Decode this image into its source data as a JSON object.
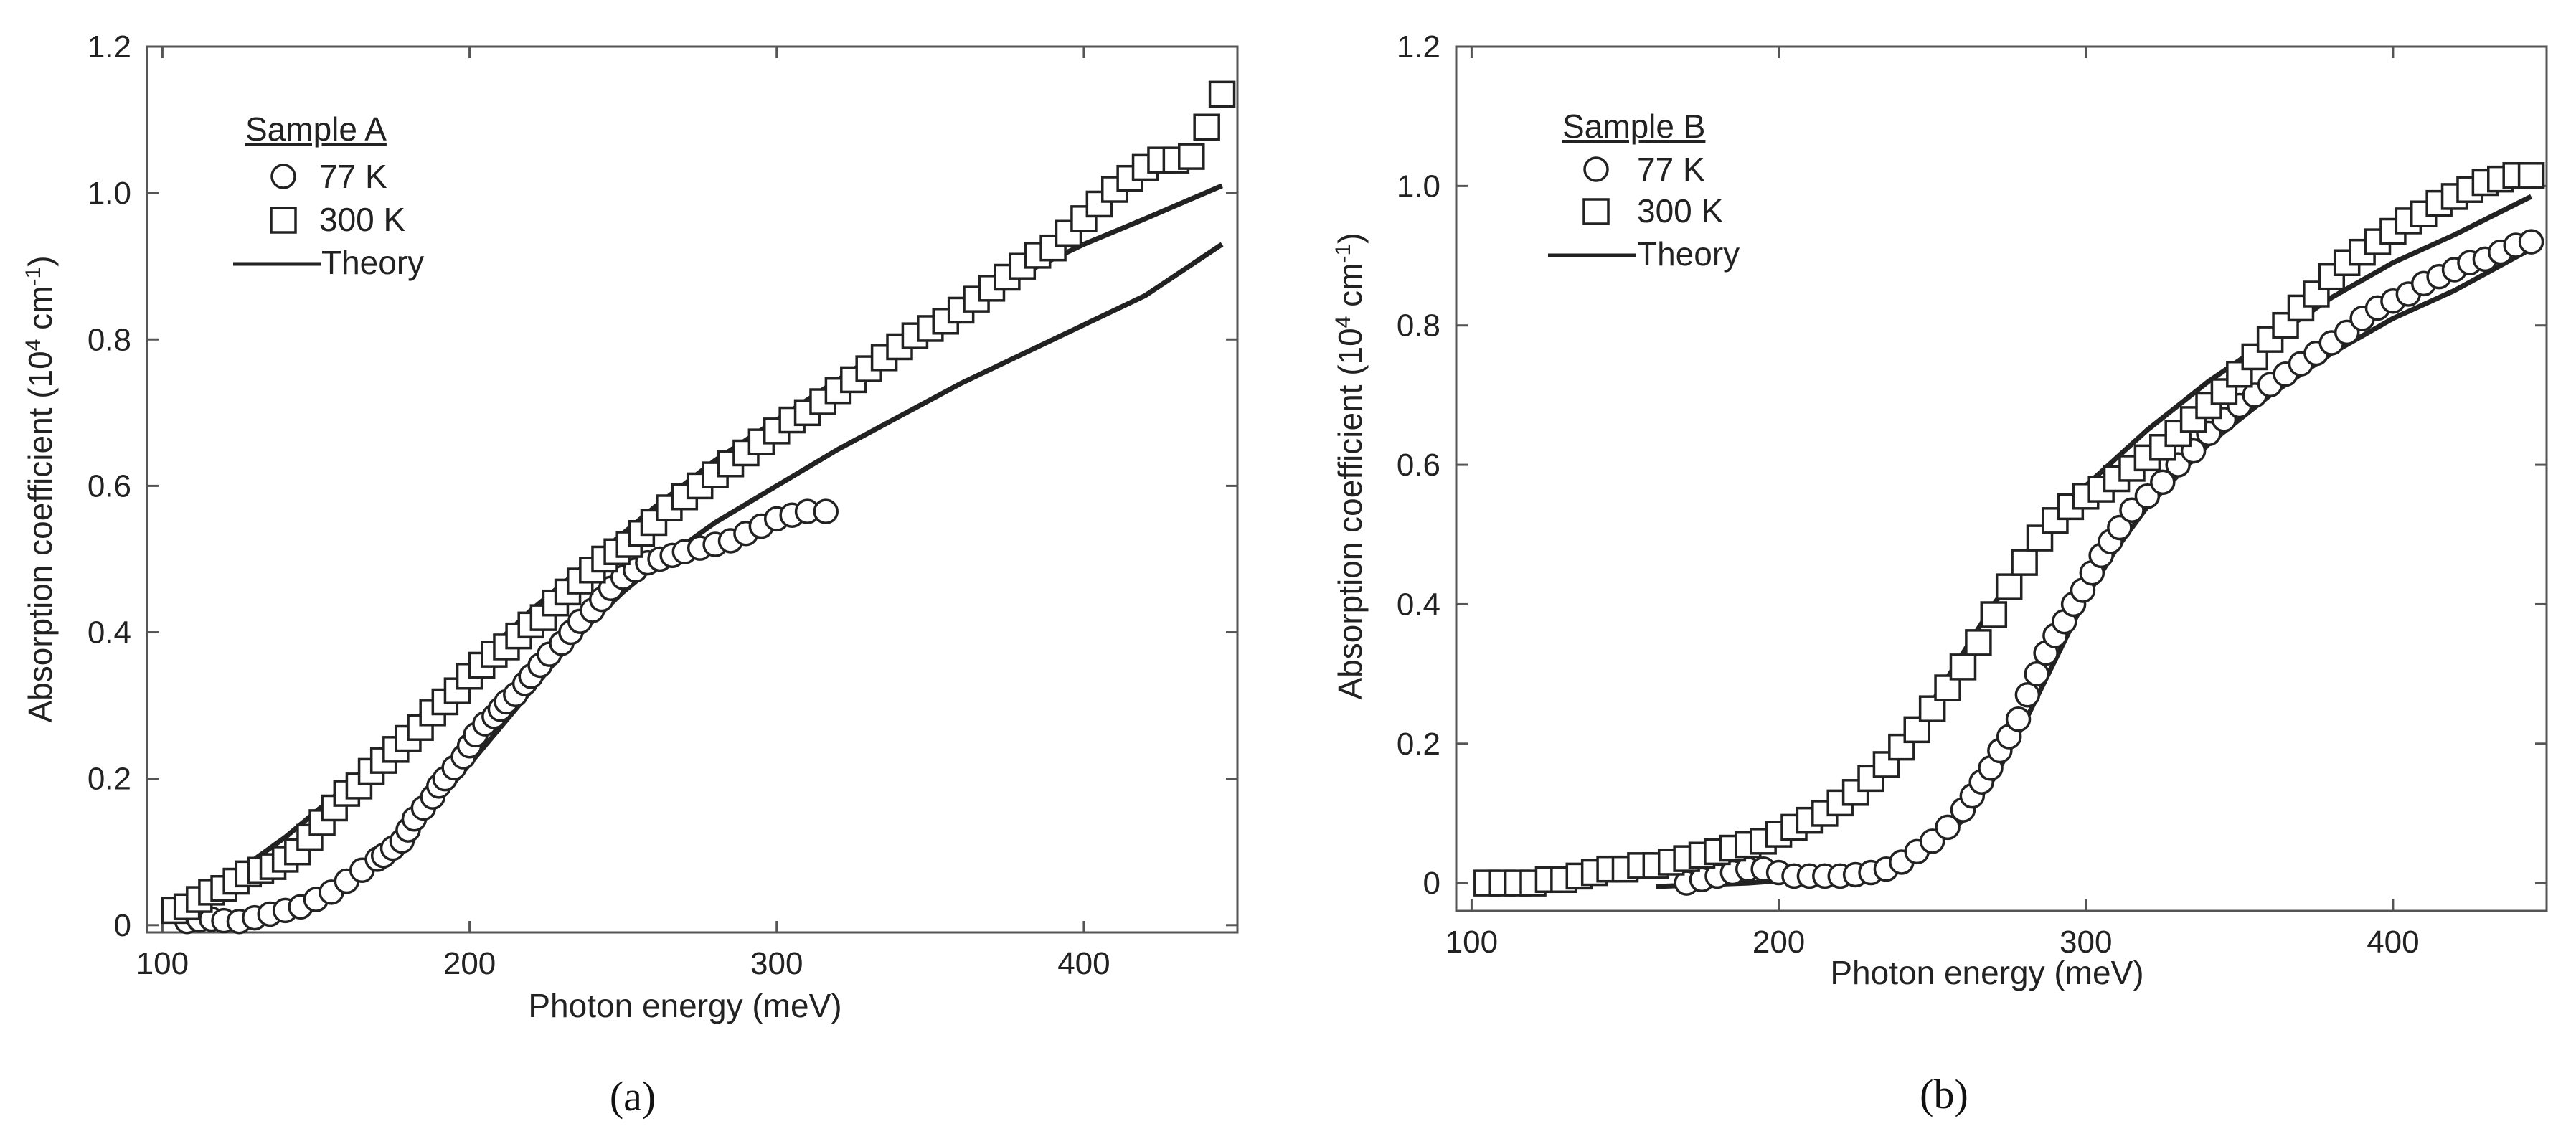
{
  "chart_data": [
    {
      "type": "scatter",
      "panel": "a",
      "caption": "(a)",
      "xlabel": "Photon energy (meV)",
      "ylabel_main": "Absorption coefficient (10",
      "ylabel_exp1": "4",
      "ylabel_mid": " cm",
      "ylabel_exp2": "-1",
      "ylabel_end": ")",
      "xlim": [
        95,
        450
      ],
      "ylim": [
        -0.01,
        1.2
      ],
      "xticks": [
        100,
        200,
        300,
        400
      ],
      "xtick_labels": [
        "100",
        "200",
        "300",
        "400"
      ],
      "yticks": [
        0,
        0.2,
        0.4,
        0.6,
        0.8,
        1.0,
        1.2
      ],
      "ytick_labels": [
        "0",
        "0.2",
        "0.4",
        "0.6",
        "0.8",
        "1.0",
        "1.2"
      ],
      "legend": {
        "title": "Sample A",
        "entries": [
          "77 K",
          "300 K",
          "Theory"
        ],
        "placement": "top-left"
      },
      "series": [
        {
          "name": "77 K",
          "marker": "circle",
          "x": [
            108,
            112,
            116,
            120,
            125,
            130,
            135,
            140,
            145,
            150,
            155,
            160,
            165,
            170,
            172,
            175,
            178,
            180,
            182,
            185,
            188,
            190,
            192,
            195,
            198,
            200,
            202,
            205,
            208,
            210,
            212,
            215,
            218,
            220,
            223,
            226,
            230,
            233,
            236,
            240,
            243,
            246,
            250,
            254,
            258,
            262,
            266,
            270,
            275,
            280,
            285,
            290,
            295,
            300,
            305,
            310,
            316
          ],
          "y": [
            0.005,
            0.007,
            0.008,
            0.006,
            0.005,
            0.01,
            0.015,
            0.02,
            0.025,
            0.035,
            0.045,
            0.06,
            0.075,
            0.09,
            0.095,
            0.105,
            0.115,
            0.13,
            0.145,
            0.16,
            0.175,
            0.19,
            0.2,
            0.215,
            0.23,
            0.245,
            0.26,
            0.275,
            0.285,
            0.295,
            0.305,
            0.315,
            0.33,
            0.34,
            0.355,
            0.37,
            0.385,
            0.4,
            0.415,
            0.43,
            0.445,
            0.46,
            0.475,
            0.485,
            0.495,
            0.5,
            0.505,
            0.51,
            0.515,
            0.52,
            0.525,
            0.535,
            0.545,
            0.555,
            0.56,
            0.565,
            0.565
          ]
        },
        {
          "name": "300 K",
          "marker": "square",
          "x": [
            104,
            108,
            112,
            116,
            120,
            124,
            128,
            132,
            136,
            140,
            144,
            148,
            152,
            156,
            160,
            164,
            168,
            172,
            176,
            180,
            184,
            188,
            192,
            196,
            200,
            204,
            208,
            212,
            216,
            220,
            224,
            228,
            232,
            236,
            240,
            244,
            248,
            252,
            256,
            260,
            265,
            270,
            275,
            280,
            285,
            290,
            295,
            300,
            305,
            310,
            315,
            320,
            325,
            330,
            335,
            340,
            345,
            350,
            355,
            360,
            365,
            370,
            375,
            380,
            385,
            390,
            395,
            400,
            405,
            410,
            415,
            420,
            425,
            430,
            435,
            440,
            445
          ],
          "y": [
            0.02,
            0.025,
            0.035,
            0.045,
            0.05,
            0.06,
            0.07,
            0.075,
            0.08,
            0.09,
            0.1,
            0.12,
            0.14,
            0.16,
            0.18,
            0.19,
            0.21,
            0.225,
            0.24,
            0.255,
            0.27,
            0.29,
            0.305,
            0.32,
            0.34,
            0.355,
            0.37,
            0.38,
            0.395,
            0.41,
            0.42,
            0.44,
            0.455,
            0.47,
            0.485,
            0.5,
            0.51,
            0.52,
            0.535,
            0.55,
            0.57,
            0.585,
            0.6,
            0.615,
            0.63,
            0.645,
            0.66,
            0.675,
            0.69,
            0.7,
            0.715,
            0.73,
            0.745,
            0.76,
            0.775,
            0.79,
            0.805,
            0.815,
            0.825,
            0.84,
            0.855,
            0.87,
            0.885,
            0.9,
            0.915,
            0.925,
            0.945,
            0.965,
            0.985,
            1.005,
            1.02,
            1.035,
            1.045,
            1.045,
            1.05,
            1.09,
            1.135
          ]
        },
        {
          "name": "Theory (300 K)",
          "marker": "line",
          "x": [
            100,
            120,
            140,
            160,
            180,
            200,
            220,
            240,
            260,
            280,
            300,
            320,
            340,
            360,
            380,
            400,
            420,
            445
          ],
          "y": [
            0.02,
            0.06,
            0.12,
            0.19,
            0.27,
            0.35,
            0.43,
            0.5,
            0.57,
            0.635,
            0.69,
            0.745,
            0.8,
            0.845,
            0.89,
            0.93,
            0.965,
            1.01
          ]
        },
        {
          "name": "Theory (77 K)",
          "marker": "line",
          "x": [
            110,
            130,
            150,
            170,
            180,
            190,
            200,
            210,
            220,
            230,
            240,
            250,
            260,
            270,
            280,
            300,
            320,
            340,
            360,
            380,
            400,
            420,
            445
          ],
          "y": [
            0.005,
            0.01,
            0.03,
            0.08,
            0.12,
            0.17,
            0.22,
            0.27,
            0.32,
            0.37,
            0.415,
            0.455,
            0.49,
            0.52,
            0.55,
            0.6,
            0.65,
            0.695,
            0.74,
            0.78,
            0.82,
            0.86,
            0.93
          ]
        }
      ]
    },
    {
      "type": "scatter",
      "panel": "b",
      "caption": "(b)",
      "xlabel": "Photon energy (meV)",
      "ylabel_main": "Absorption coefficient (10",
      "ylabel_exp1": "4",
      "ylabel_mid": " cm",
      "ylabel_exp2": "-1",
      "ylabel_end": ")",
      "xlim": [
        95,
        450
      ],
      "ylim": [
        -0.04,
        1.2
      ],
      "xticks": [
        100,
        200,
        300,
        400
      ],
      "xtick_labels": [
        "100",
        "200",
        "300",
        "400"
      ],
      "yticks": [
        0,
        0.2,
        0.4,
        0.6,
        0.8,
        1.0,
        1.2
      ],
      "ytick_labels": [
        "0",
        "0.2",
        "0.4",
        "0.6",
        "0.8",
        "1.0",
        "1.2"
      ],
      "legend": {
        "title": "Sample B",
        "entries": [
          "77 K",
          "300 K",
          "Theory"
        ],
        "placement": "top-left"
      },
      "series": [
        {
          "name": "77 K",
          "marker": "circle",
          "x": [
            170,
            175,
            180,
            185,
            190,
            195,
            200,
            205,
            210,
            215,
            220,
            225,
            230,
            235,
            240,
            245,
            250,
            255,
            260,
            263,
            266,
            269,
            272,
            275,
            278,
            281,
            284,
            287,
            290,
            293,
            296,
            299,
            302,
            305,
            308,
            311,
            315,
            320,
            325,
            330,
            335,
            340,
            345,
            350,
            355,
            360,
            365,
            370,
            375,
            380,
            385,
            390,
            395,
            400,
            405,
            410,
            415,
            420,
            425,
            430,
            435,
            440,
            445
          ],
          "y": [
            0.0,
            0.005,
            0.01,
            0.015,
            0.02,
            0.02,
            0.015,
            0.01,
            0.01,
            0.01,
            0.01,
            0.012,
            0.015,
            0.02,
            0.03,
            0.045,
            0.06,
            0.08,
            0.105,
            0.125,
            0.145,
            0.165,
            0.19,
            0.21,
            0.235,
            0.27,
            0.3,
            0.33,
            0.355,
            0.375,
            0.4,
            0.42,
            0.445,
            0.47,
            0.49,
            0.51,
            0.535,
            0.555,
            0.575,
            0.6,
            0.62,
            0.645,
            0.665,
            0.685,
            0.7,
            0.715,
            0.73,
            0.745,
            0.76,
            0.775,
            0.79,
            0.81,
            0.825,
            0.835,
            0.845,
            0.86,
            0.87,
            0.88,
            0.89,
            0.895,
            0.905,
            0.915,
            0.92
          ]
        },
        {
          "name": "300 K",
          "marker": "square",
          "x": [
            105,
            110,
            115,
            120,
            125,
            130,
            135,
            140,
            145,
            150,
            155,
            160,
            165,
            170,
            175,
            180,
            185,
            190,
            195,
            200,
            205,
            210,
            215,
            220,
            225,
            230,
            235,
            240,
            245,
            250,
            255,
            260,
            265,
            270,
            275,
            280,
            285,
            290,
            295,
            300,
            305,
            310,
            315,
            320,
            325,
            330,
            335,
            340,
            345,
            350,
            355,
            360,
            365,
            370,
            375,
            380,
            385,
            390,
            395,
            400,
            405,
            410,
            415,
            420,
            425,
            430,
            435,
            440,
            445
          ],
          "y": [
            0.0,
            0.0,
            0.0,
            0.0,
            0.005,
            0.005,
            0.01,
            0.015,
            0.02,
            0.02,
            0.025,
            0.025,
            0.03,
            0.035,
            0.04,
            0.045,
            0.05,
            0.055,
            0.06,
            0.07,
            0.08,
            0.09,
            0.1,
            0.115,
            0.13,
            0.15,
            0.17,
            0.195,
            0.22,
            0.25,
            0.28,
            0.31,
            0.345,
            0.385,
            0.425,
            0.46,
            0.495,
            0.52,
            0.54,
            0.555,
            0.565,
            0.58,
            0.595,
            0.61,
            0.625,
            0.645,
            0.665,
            0.685,
            0.705,
            0.73,
            0.755,
            0.78,
            0.8,
            0.825,
            0.845,
            0.87,
            0.89,
            0.905,
            0.92,
            0.935,
            0.95,
            0.96,
            0.975,
            0.985,
            0.995,
            1.005,
            1.01,
            1.015,
            1.015
          ]
        },
        {
          "name": "Theory (300 K)",
          "marker": "line",
          "x": [
            105,
            140,
            160,
            180,
            200,
            215,
            230,
            240,
            250,
            260,
            270,
            280,
            290,
            300,
            310,
            320,
            340,
            360,
            380,
            400,
            420,
            445
          ],
          "y": [
            0.0,
            0.005,
            0.015,
            0.035,
            0.065,
            0.1,
            0.15,
            0.2,
            0.26,
            0.33,
            0.4,
            0.46,
            0.52,
            0.57,
            0.61,
            0.65,
            0.72,
            0.78,
            0.84,
            0.89,
            0.93,
            0.985
          ]
        },
        {
          "name": "Theory (77 K)",
          "marker": "line",
          "x": [
            160,
            190,
            215,
            235,
            250,
            260,
            270,
            280,
            290,
            300,
            310,
            320,
            340,
            360,
            380,
            400,
            420,
            445
          ],
          "y": [
            -0.005,
            0.0,
            0.008,
            0.025,
            0.055,
            0.09,
            0.15,
            0.23,
            0.32,
            0.41,
            0.48,
            0.54,
            0.63,
            0.7,
            0.76,
            0.81,
            0.85,
            0.91
          ]
        }
      ]
    }
  ]
}
